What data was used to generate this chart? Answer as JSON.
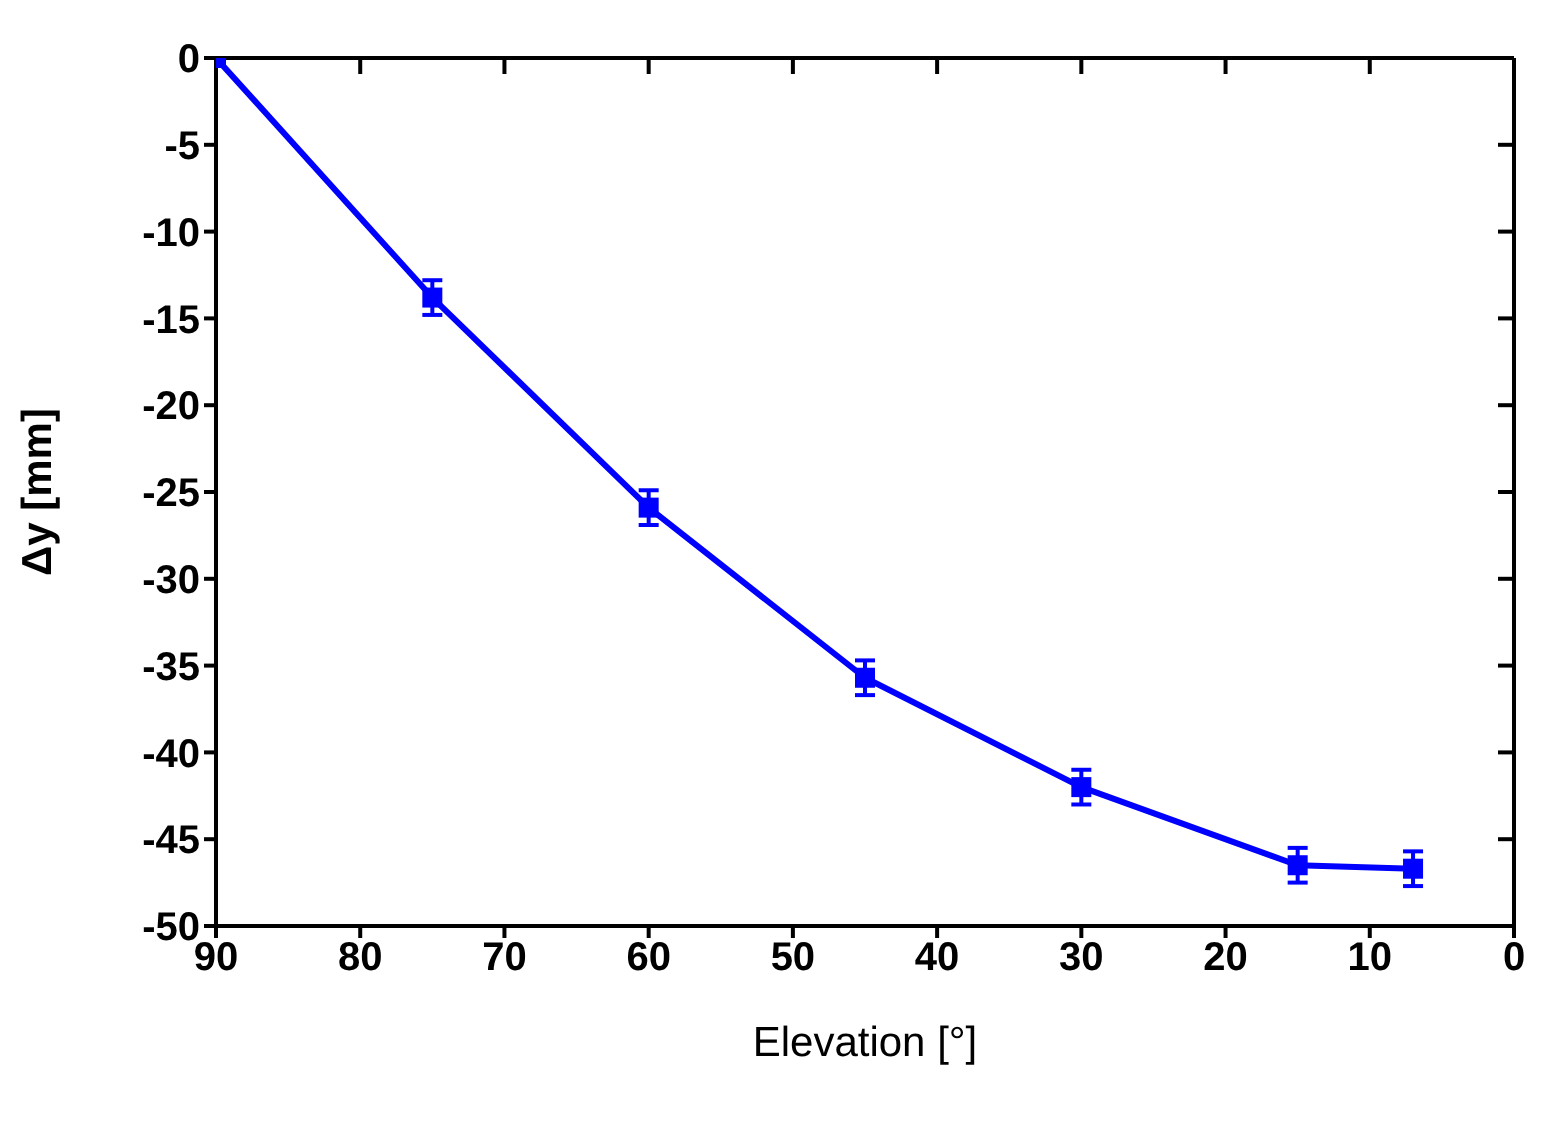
{
  "chart_data": {
    "type": "line",
    "xlabel": "Elevation [°]",
    "ylabel": "Δy [mm]",
    "x": [
      90,
      75,
      60,
      45,
      30,
      15,
      7
    ],
    "series": [
      {
        "color": "#0000ff",
        "values": [
          0,
          -13.8,
          -25.9,
          -35.7,
          -42.0,
          -46.5,
          -46.7
        ],
        "errors": [
          null,
          1,
          1,
          1,
          1,
          1,
          1
        ]
      }
    ],
    "xlim": [
      90,
      0
    ],
    "xticks": [
      90,
      80,
      70,
      60,
      50,
      40,
      30,
      20,
      10,
      0
    ],
    "ylim": [
      -50,
      0
    ],
    "yticks": [
      0,
      -5,
      -10,
      -15,
      -20,
      -25,
      -30,
      -35,
      -40,
      -45,
      -50
    ],
    "marker": "square",
    "line_style": "solid",
    "grid": false
  }
}
